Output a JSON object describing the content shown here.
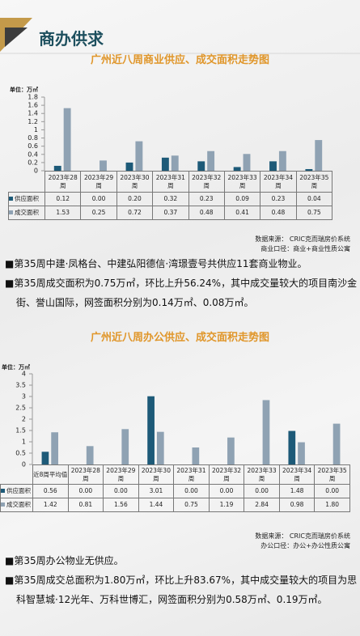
{
  "header": {
    "title": "商办供求"
  },
  "chart_data": [
    {
      "type": "bar",
      "title": "广州近八周商业供应、成交面积走势图",
      "unit_label": "单位：万㎡",
      "categories": [
        "2023年28周",
        "2023年29周",
        "2023年30周",
        "2023年31周",
        "2023年32周",
        "2023年33周",
        "2023年34周",
        "2023年35周"
      ],
      "series": [
        {
          "name": "供应面积",
          "color": "#1d5a78",
          "values": [
            0.12,
            0,
            0.2,
            0.32,
            0.23,
            0.09,
            0.23,
            0.04
          ],
          "value_labels": [
            "0.12",
            "0.00",
            "0.20",
            "0.32",
            "0.23",
            "0.09",
            "0.23",
            "0.04"
          ]
        },
        {
          "name": "成交面积",
          "color": "#8fa2b3",
          "values": [
            1.53,
            0.25,
            0.72,
            0.37,
            0.48,
            0.41,
            0.48,
            0.75
          ],
          "value_labels": [
            "1.53",
            "0.25",
            "0.72",
            "0.37",
            "0.48",
            "0.41",
            "0.48",
            "0.75"
          ]
        }
      ],
      "ylim": [
        0,
        1.8
      ],
      "yticks": [
        0,
        0.2,
        0.4,
        0.6,
        0.8,
        1,
        1.2,
        1.4,
        1.6,
        1.8
      ],
      "source": [
        "数据来源： CRIC克而瑞房价系统",
        "商业口径：商业+商业性质公寓"
      ],
      "notes": [
        "■第35周中建·凤格台、中建弘阳德信·湾璟壹号共供应11套商业物业。",
        "■第35周成交面积为0.75万㎡，环比上升56.24%，其中成交量较大的项目南沙金街、誉山国际，网签面积分别为0.14万㎡、0.08万㎡。"
      ]
    },
    {
      "type": "bar",
      "title": "广州近八周办公供应、成交面积走势图",
      "unit_label": "单位：万㎡",
      "categories": [
        "近8周平均值",
        "2023年28周",
        "2023年29周",
        "2023年30周",
        "2023年31周",
        "2023年32周",
        "2023年33周",
        "2023年34周",
        "2023年35周"
      ],
      "series": [
        {
          "name": "供应面积",
          "color": "#1d5a78",
          "values": [
            0.56,
            0,
            0,
            3.01,
            0,
            0,
            0,
            1.48,
            0
          ],
          "value_labels": [
            "0.56",
            "0.00",
            "0.00",
            "3.01",
            "0.00",
            "0.00",
            "0.00",
            "1.48",
            "0.00"
          ]
        },
        {
          "name": "成交面积",
          "color": "#8fa2b3",
          "values": [
            1.42,
            0.81,
            1.56,
            1.44,
            0.75,
            1.19,
            2.84,
            0.98,
            1.8
          ],
          "value_labels": [
            "1.42",
            "0.81",
            "1.56",
            "1.44",
            "0.75",
            "1.19",
            "2.84",
            "0.98",
            "1.80"
          ]
        }
      ],
      "ylim": [
        0,
        4
      ],
      "yticks": [
        0,
        0.5,
        1,
        1.5,
        2,
        2.5,
        3,
        3.5,
        4
      ],
      "source": [
        "数据来源： CRIC克而瑞房价系统",
        "办公口径：办公+办公性质公寓"
      ],
      "notes": [
        "■第35周办公物业无供应。",
        "■第35周成交总面积为1.80万㎡，环比上升83.67%，其中成交量较大的项目为思科智慧城·12光年、万科世博汇，网签面积分别为0.58万㎡、0.19万㎡。"
      ]
    }
  ]
}
